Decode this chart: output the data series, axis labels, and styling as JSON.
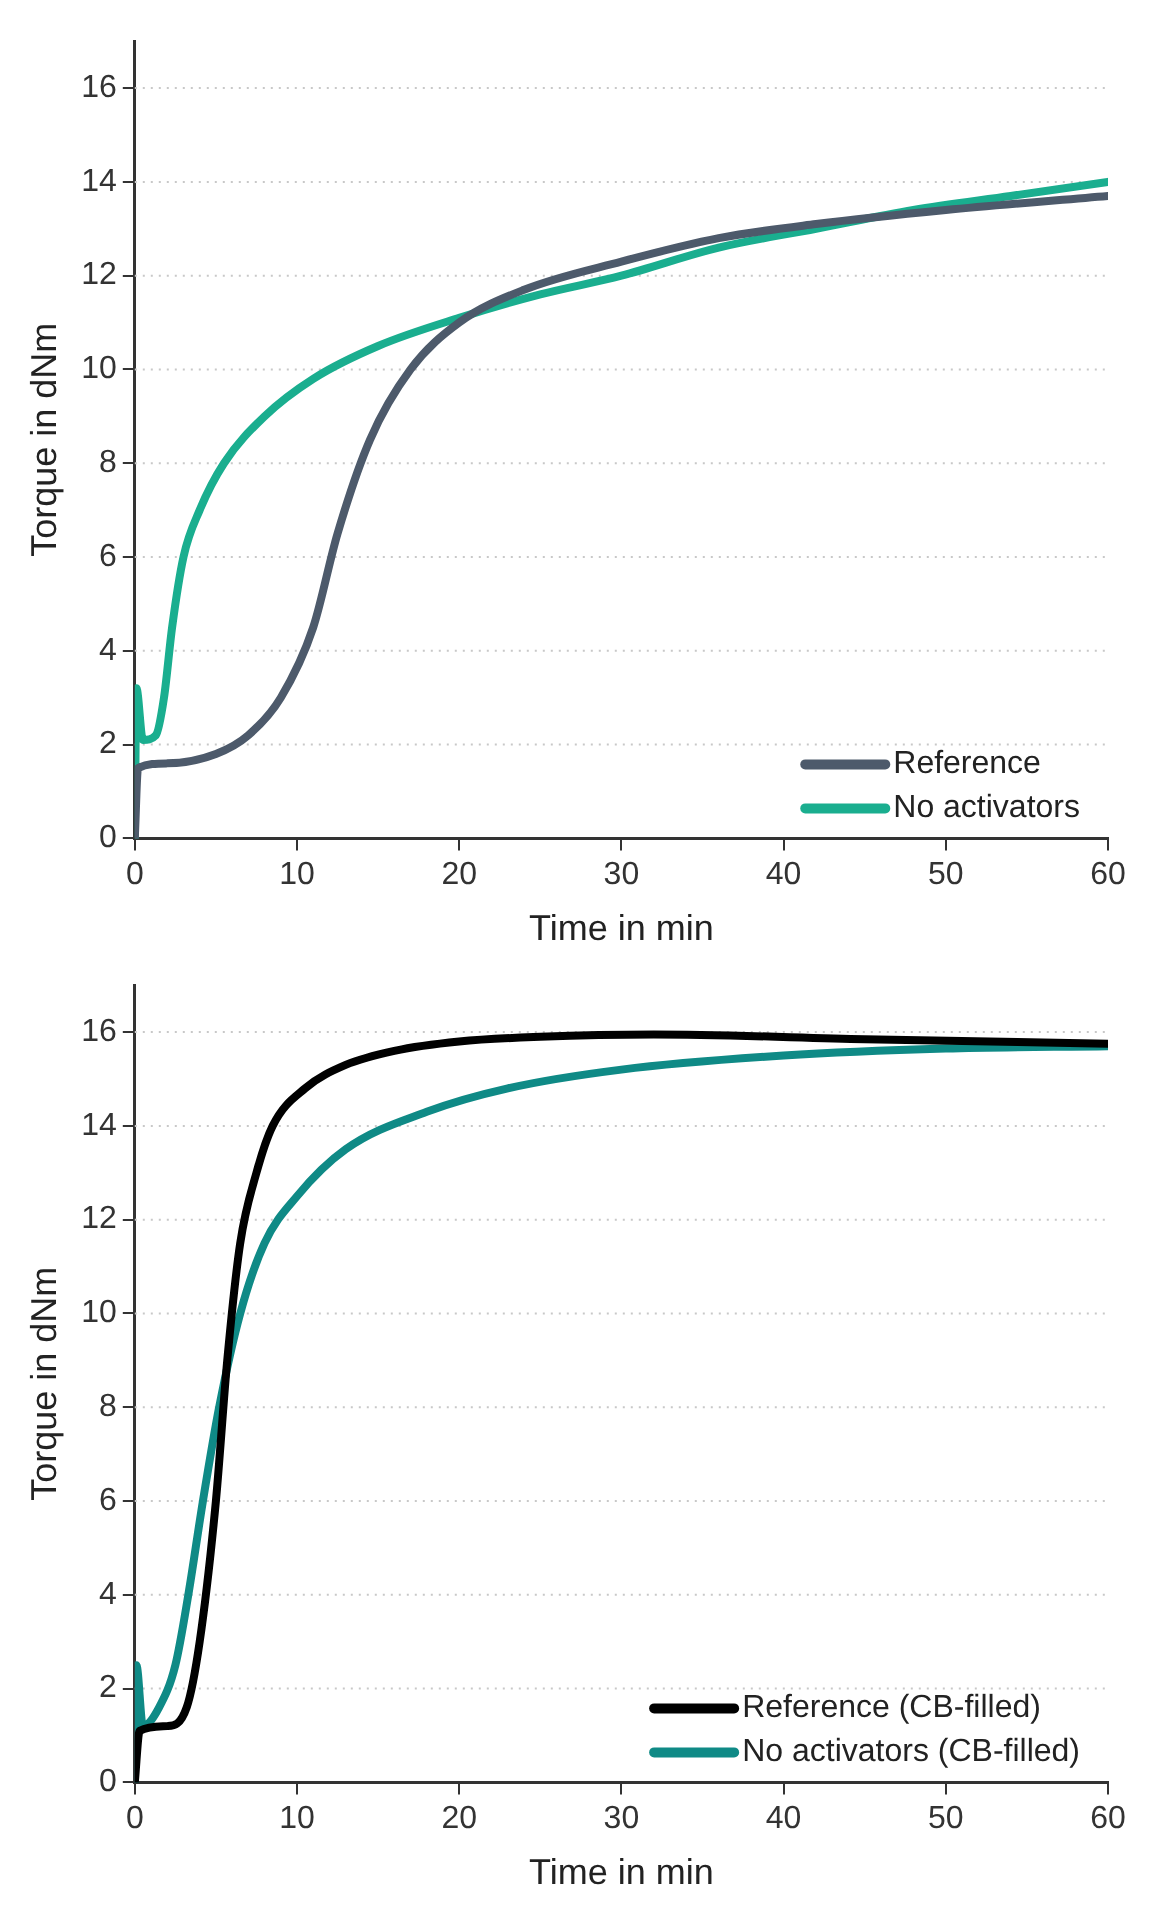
{
  "chart_data": [
    {
      "type": "line",
      "xlabel": "Time in min",
      "ylabel": "Torque in dNm",
      "xlim": [
        0,
        60
      ],
      "xticks": [
        0,
        10,
        20,
        30,
        40,
        50,
        60
      ],
      "ylim": [
        0,
        17
      ],
      "yticks": [
        0,
        2,
        4,
        6,
        8,
        10,
        12,
        14,
        16
      ],
      "grid": "y",
      "legend": "bottom right",
      "marker": "none",
      "line_style": "solid",
      "series": [
        {
          "name": "Reference",
          "color": "#4d5a6b",
          "x": [
            0,
            0.2,
            2,
            5,
            7,
            9,
            11,
            12.5,
            14.5,
            17,
            20,
            24,
            30,
            36,
            42,
            50,
            60
          ],
          "values": [
            0,
            1.5,
            1.6,
            1.8,
            2.2,
            3,
            4.5,
            6.5,
            8.5,
            10,
            11,
            11.7,
            12.3,
            12.8,
            13.1,
            13.4,
            13.7
          ]
        },
        {
          "name": "No activators",
          "color": "#1aae8f",
          "x": [
            0,
            0.1,
            0.5,
            1.3,
            1.8,
            2.3,
            3,
            4,
            5.5,
            8,
            11,
            15,
            20,
            25,
            30,
            36,
            42,
            48,
            54,
            60
          ],
          "values": [
            0,
            3.2,
            2.1,
            2.2,
            3,
            4.5,
            6,
            7,
            8,
            9,
            9.8,
            10.5,
            11.1,
            11.6,
            12,
            12.6,
            13,
            13.4,
            13.7,
            14
          ]
        }
      ]
    },
    {
      "type": "line",
      "xlabel": "Time in min",
      "ylabel": "Torque in dNm",
      "xlim": [
        0,
        60
      ],
      "xticks": [
        0,
        10,
        20,
        30,
        40,
        50,
        60
      ],
      "ylim": [
        0,
        17
      ],
      "yticks": [
        0,
        2,
        4,
        6,
        8,
        10,
        12,
        14,
        16
      ],
      "grid": "y",
      "legend": "bottom right",
      "marker": "none",
      "line_style": "solid",
      "series": [
        {
          "name": "Reference (CB-filled)",
          "color": "#000000",
          "x": [
            0,
            0.3,
            2,
            3.2,
            4,
            5,
            5.7,
            6.5,
            7.5,
            8.5,
            10.5,
            13,
            16,
            20,
            25,
            32,
            45,
            60
          ],
          "values": [
            0,
            1.1,
            1.2,
            1.6,
            3,
            6,
            9,
            11.5,
            13,
            14,
            14.8,
            15.3,
            15.6,
            15.8,
            15.9,
            15.95,
            15.85,
            15.75
          ]
        },
        {
          "name": "No activators (CB-filled)",
          "color": "#0f8a86",
          "x": [
            0,
            0.1,
            0.5,
            1.5,
            2.5,
            3.3,
            4.2,
            5.2,
            6.5,
            8,
            10,
            13,
            18,
            23,
            30,
            40,
            50,
            60
          ],
          "values": [
            0,
            2.5,
            1.2,
            1.6,
            2.5,
            4,
            6,
            8,
            10,
            11.5,
            12.5,
            13.5,
            14.3,
            14.8,
            15.2,
            15.5,
            15.65,
            15.7
          ]
        }
      ]
    }
  ]
}
